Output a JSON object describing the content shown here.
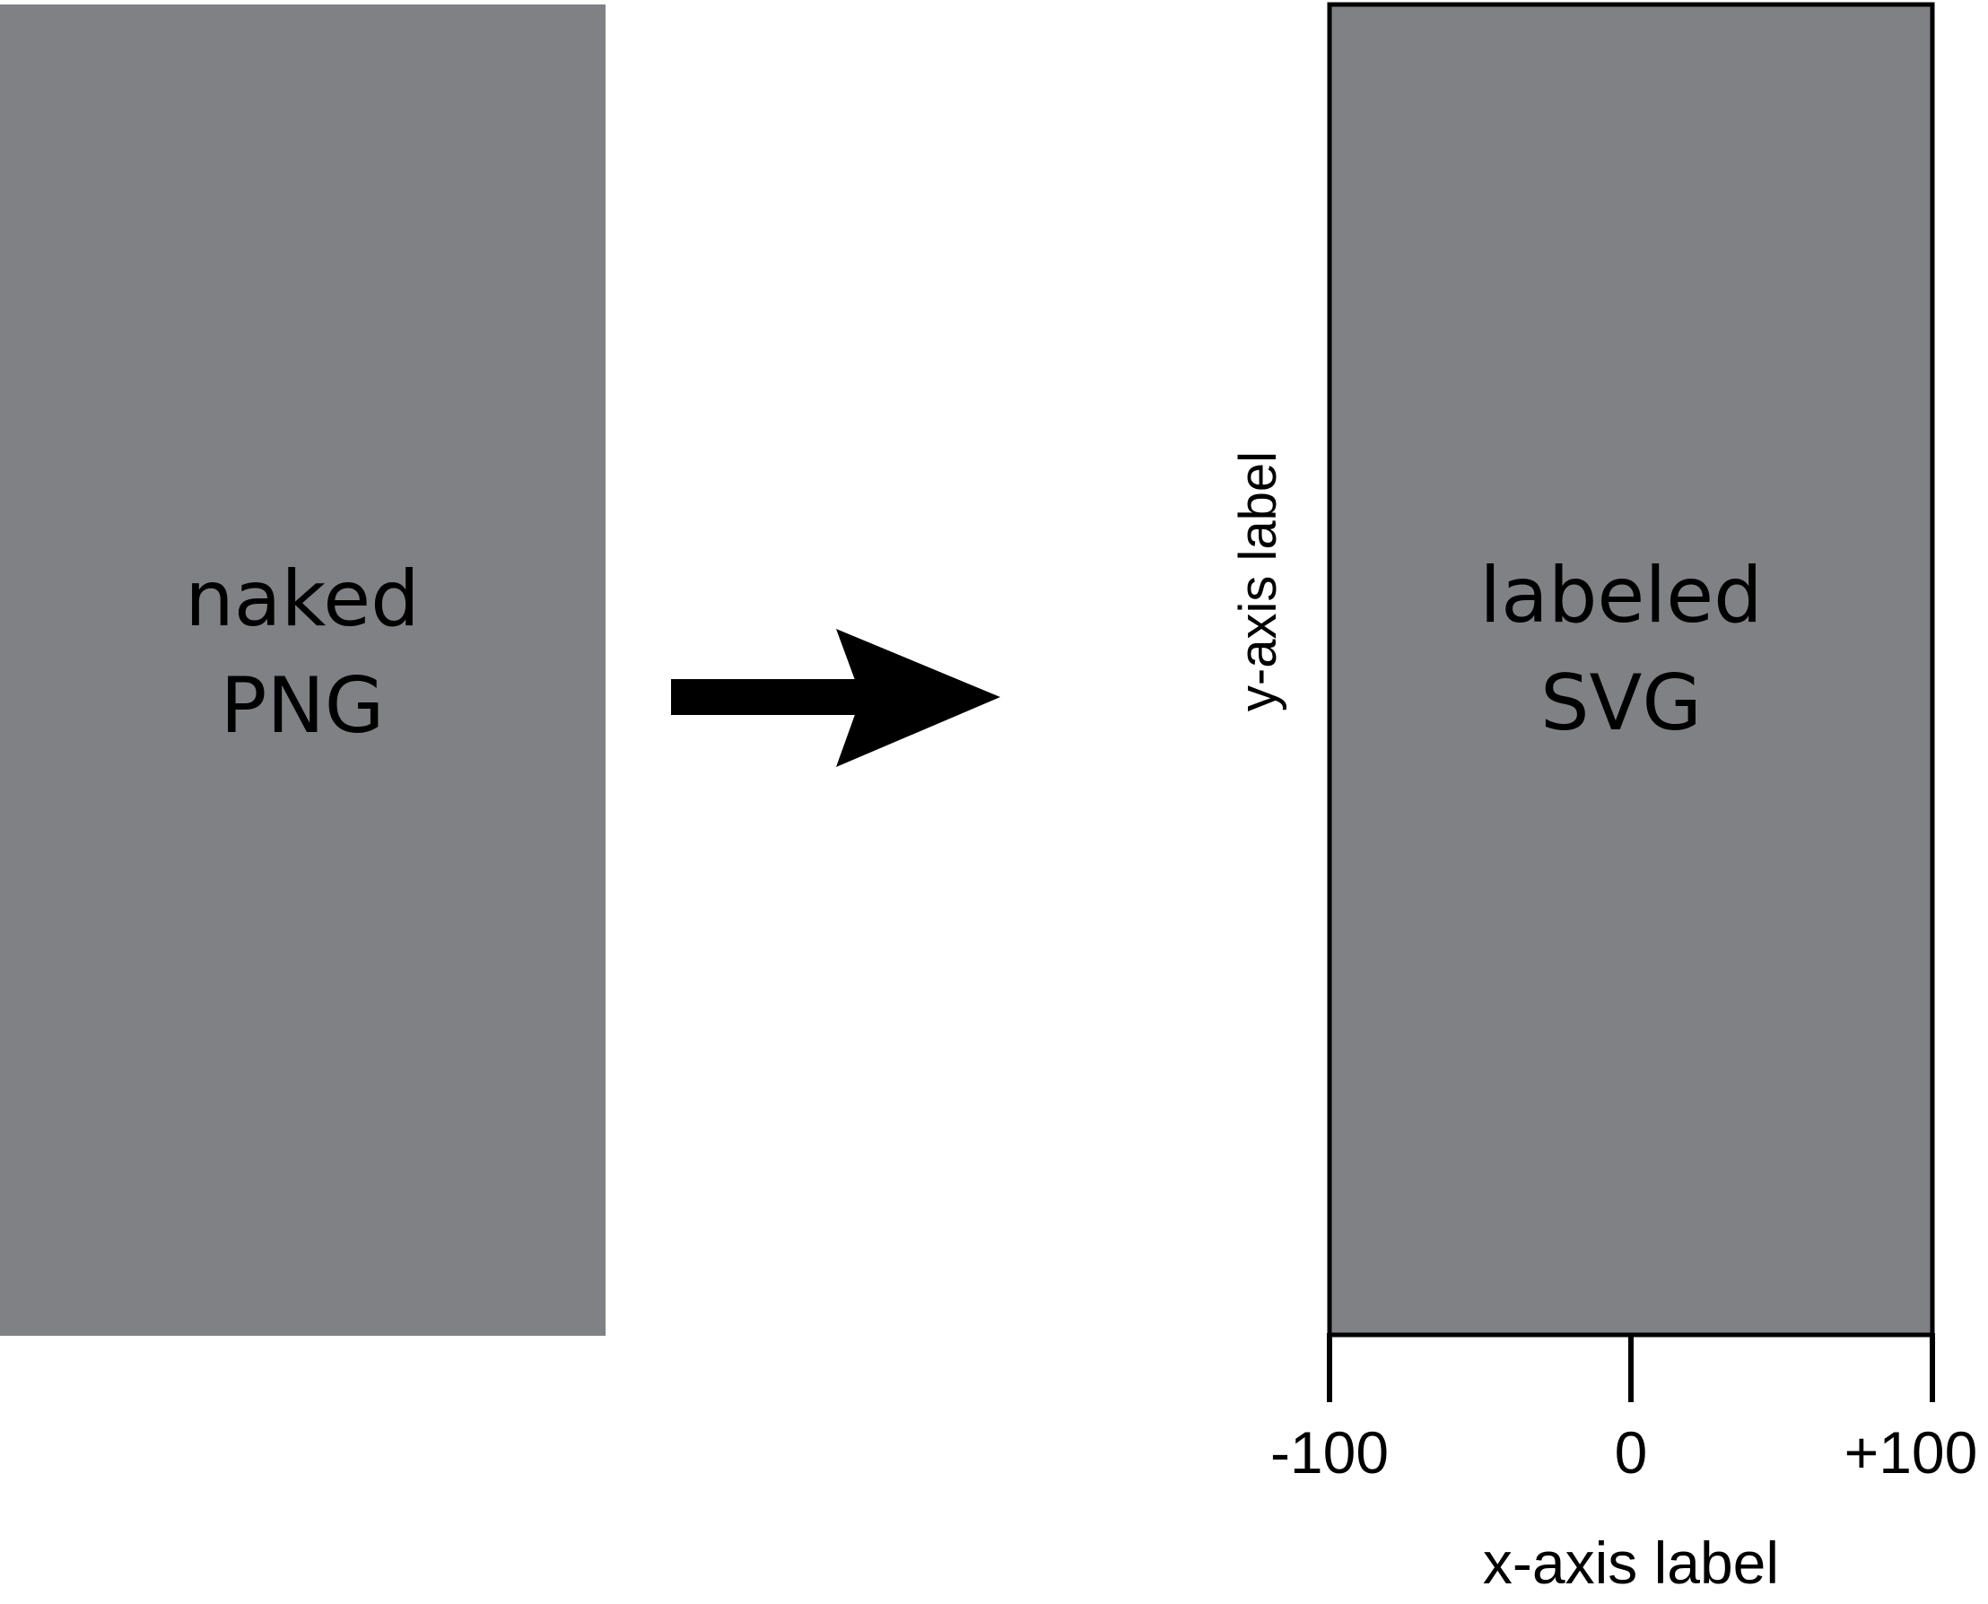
{
  "left_panel": {
    "line1": "naked",
    "line2": "PNG",
    "fill": "#808184"
  },
  "arrow": {
    "icon": "right-arrow-icon",
    "color": "#000000"
  },
  "right_panel": {
    "line1": "labeled",
    "line2": "SVG",
    "fill": "#808184",
    "border": "#000000"
  },
  "axes": {
    "y_label": "y-axis label",
    "x_label": "x-axis label",
    "x_ticks": [
      "-100",
      "0",
      "+100"
    ]
  }
}
